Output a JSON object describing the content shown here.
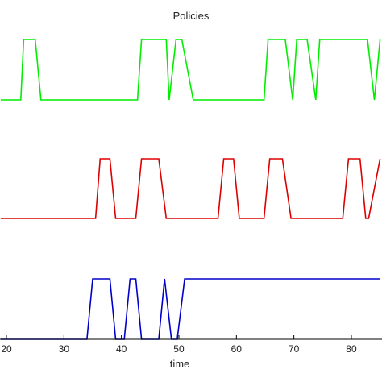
{
  "chart_data": {
    "type": "line",
    "title": "Policies",
    "xlabel": "time",
    "ylabel": "",
    "xlim": [
      19,
      85
    ],
    "xticks": [
      20,
      30,
      40,
      50,
      60,
      70,
      80
    ],
    "xtick_labels": [
      "20",
      "30",
      "40",
      "50",
      "60",
      "70",
      "80"
    ],
    "grid": false,
    "series": [
      {
        "color": "#00ee00",
        "x": [
          19,
          22.5,
          23,
          25,
          26,
          42.8,
          43.5,
          46.5,
          47.8,
          48.3,
          49.5,
          50,
          50.5,
          52.5,
          64.8,
          65.5,
          68.5,
          69.8,
          70.5,
          72.3,
          73.8,
          74.5,
          81.3,
          81.8,
          82.8,
          84,
          85
        ],
        "y": [
          0,
          0,
          1,
          1,
          0,
          0,
          1,
          1,
          1,
          0,
          1,
          1,
          1,
          0,
          0,
          1,
          1,
          0,
          1,
          1,
          0,
          1,
          1,
          1,
          1,
          0,
          1
        ]
      },
      {
        "color": "#dd0000",
        "x": [
          19,
          35.5,
          36.3,
          38,
          39,
          42.5,
          43.5,
          46.5,
          47.8,
          56.8,
          57.8,
          59.5,
          60.5,
          64.8,
          65.8,
          68,
          69.5,
          78.5,
          79.5,
          81.5,
          82.5,
          83,
          85
        ],
        "y": [
          0,
          0,
          1,
          1,
          0,
          0,
          1,
          1,
          0,
          0,
          1,
          1,
          0,
          0,
          1,
          1,
          0,
          0,
          1,
          1,
          0,
          0,
          1
        ]
      },
      {
        "color": "#0000cc",
        "x": [
          19,
          34,
          35,
          38,
          39,
          40.5,
          41.5,
          42.5,
          43.5,
          46.5,
          47.5,
          48.7,
          49.7,
          51,
          85
        ],
        "y": [
          0,
          0,
          1,
          1,
          0,
          0,
          1,
          1,
          0,
          0,
          1,
          0,
          0,
          1,
          1
        ]
      }
    ]
  }
}
